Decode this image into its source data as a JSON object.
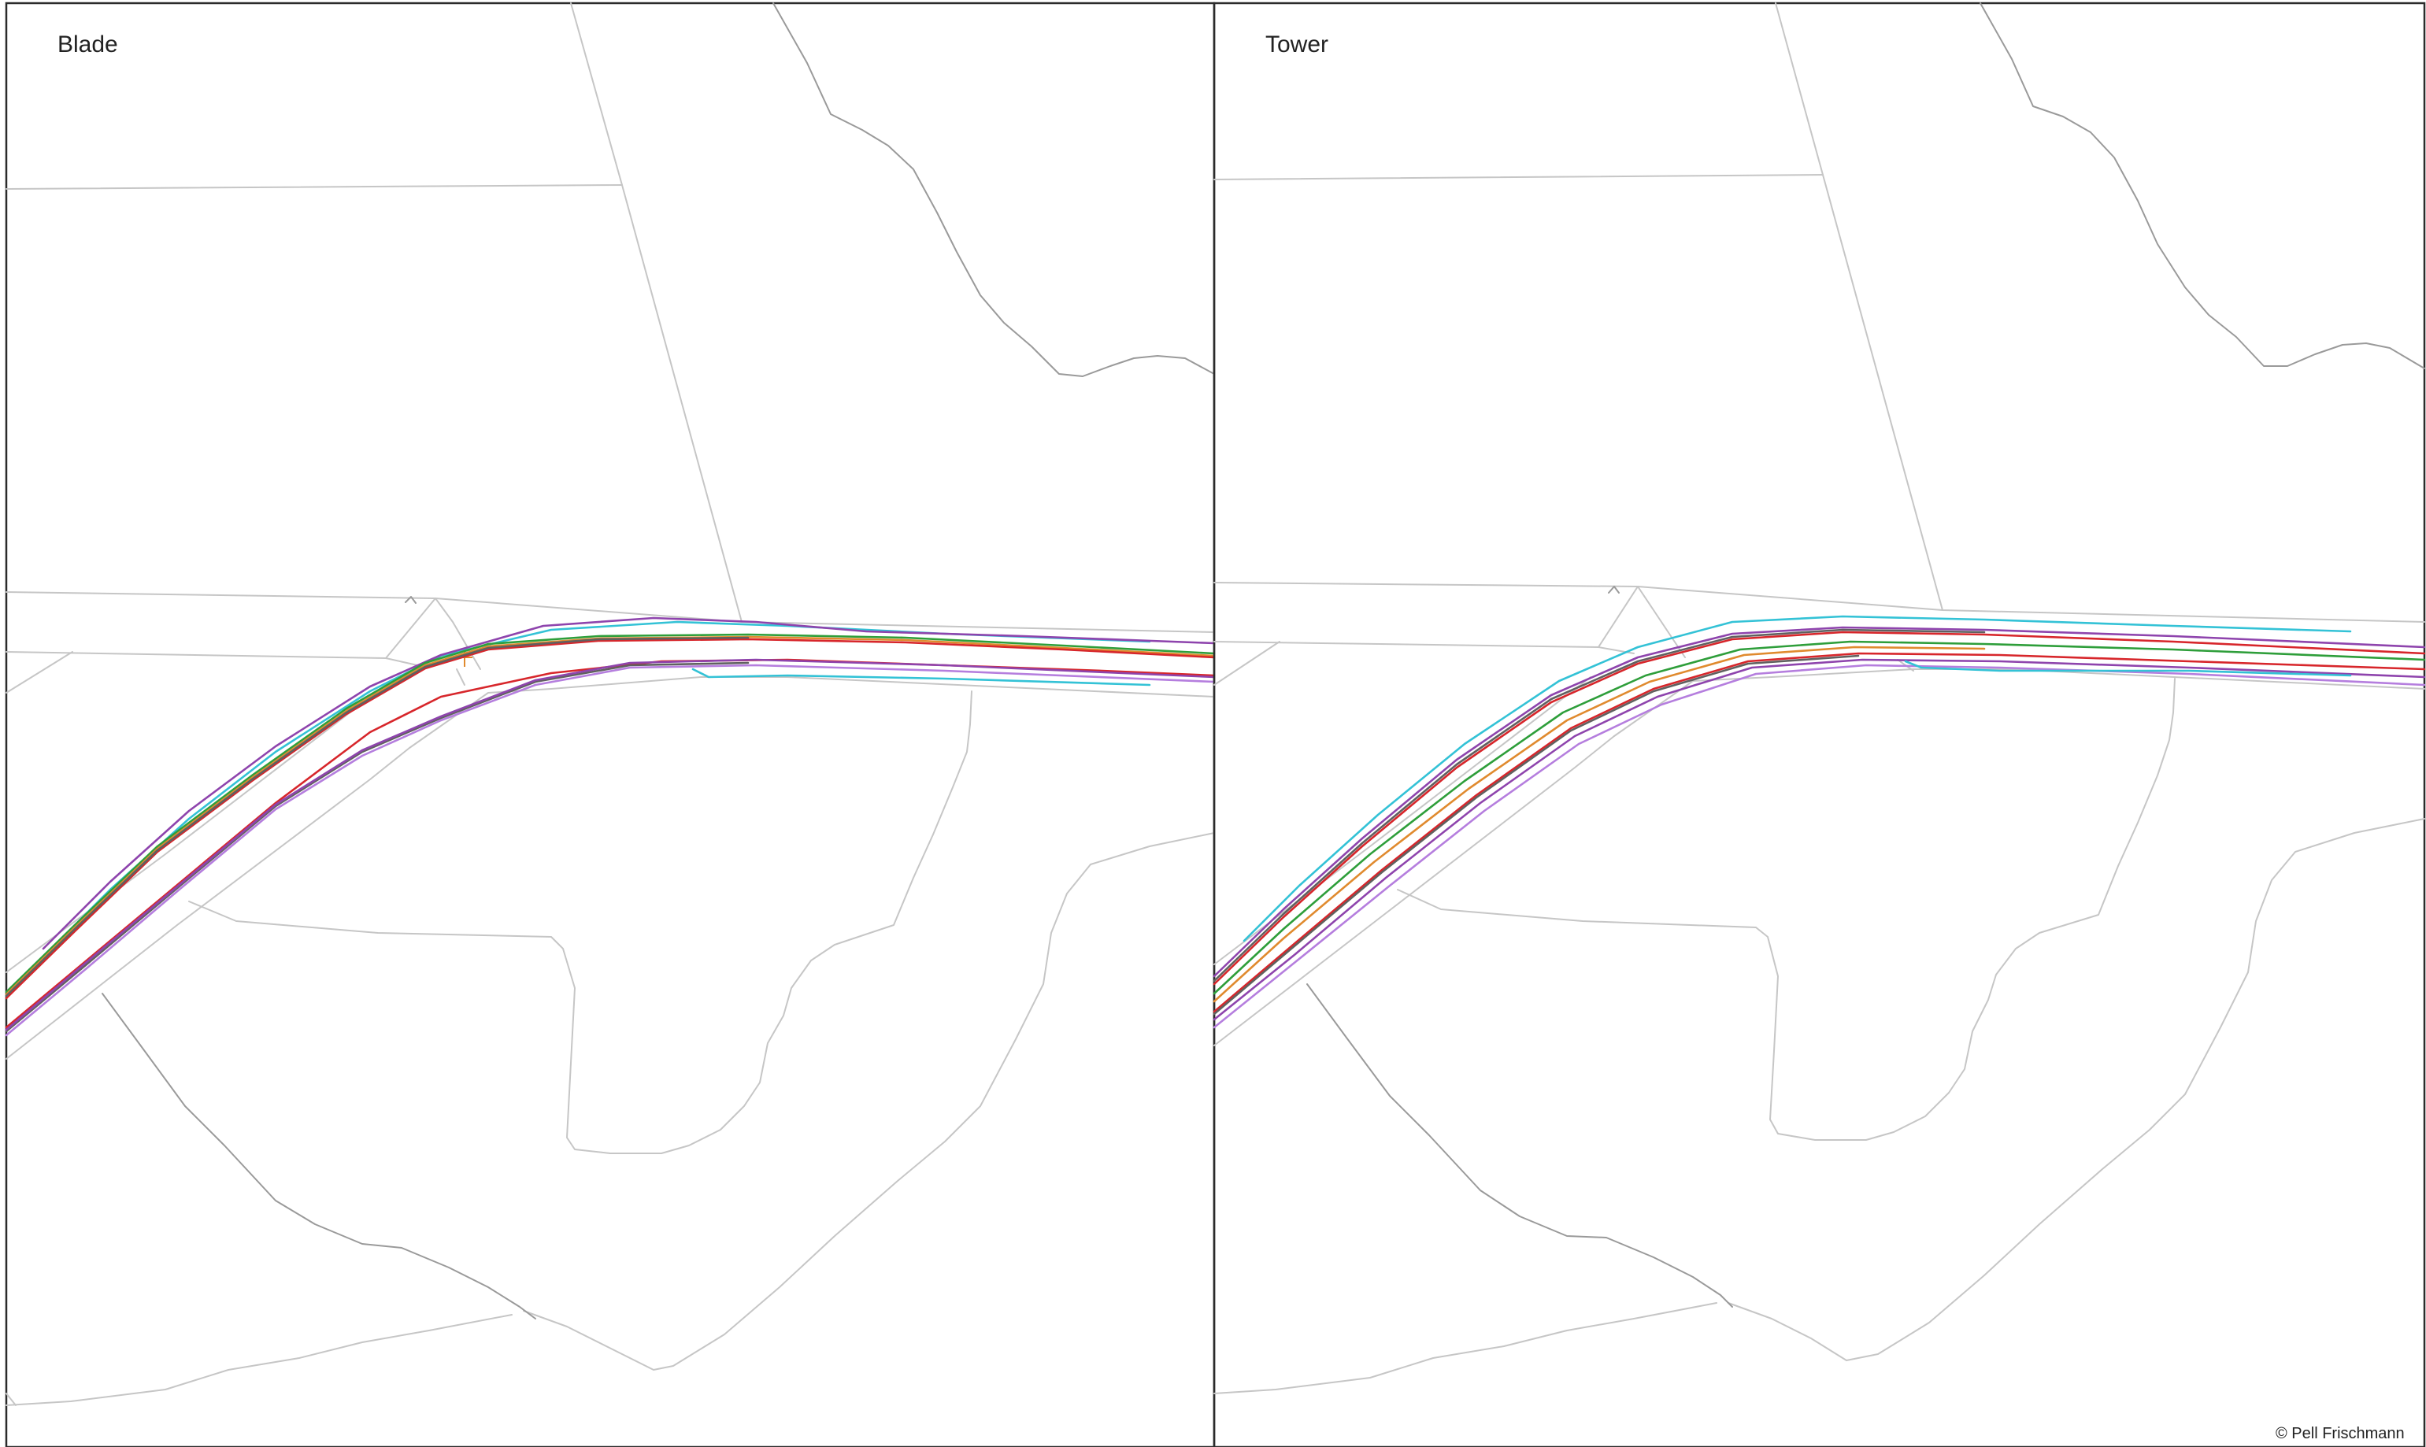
{
  "panels": [
    {
      "title": "Blade"
    },
    {
      "title": "Tower"
    }
  ],
  "copyright": "© Pell Frischmann",
  "colors": {
    "frame": "#2b2b2b",
    "context_line": "#c6c6c6",
    "track_red": "#d7262b",
    "track_cyan": "#33c2d6",
    "track_purple": "#8e44ad",
    "track_violet": "#b57ede",
    "track_green": "#2e9e3a",
    "track_orange": "#e08a2e",
    "track_grey": "#606060",
    "track_blue": "#4a6fd0"
  }
}
